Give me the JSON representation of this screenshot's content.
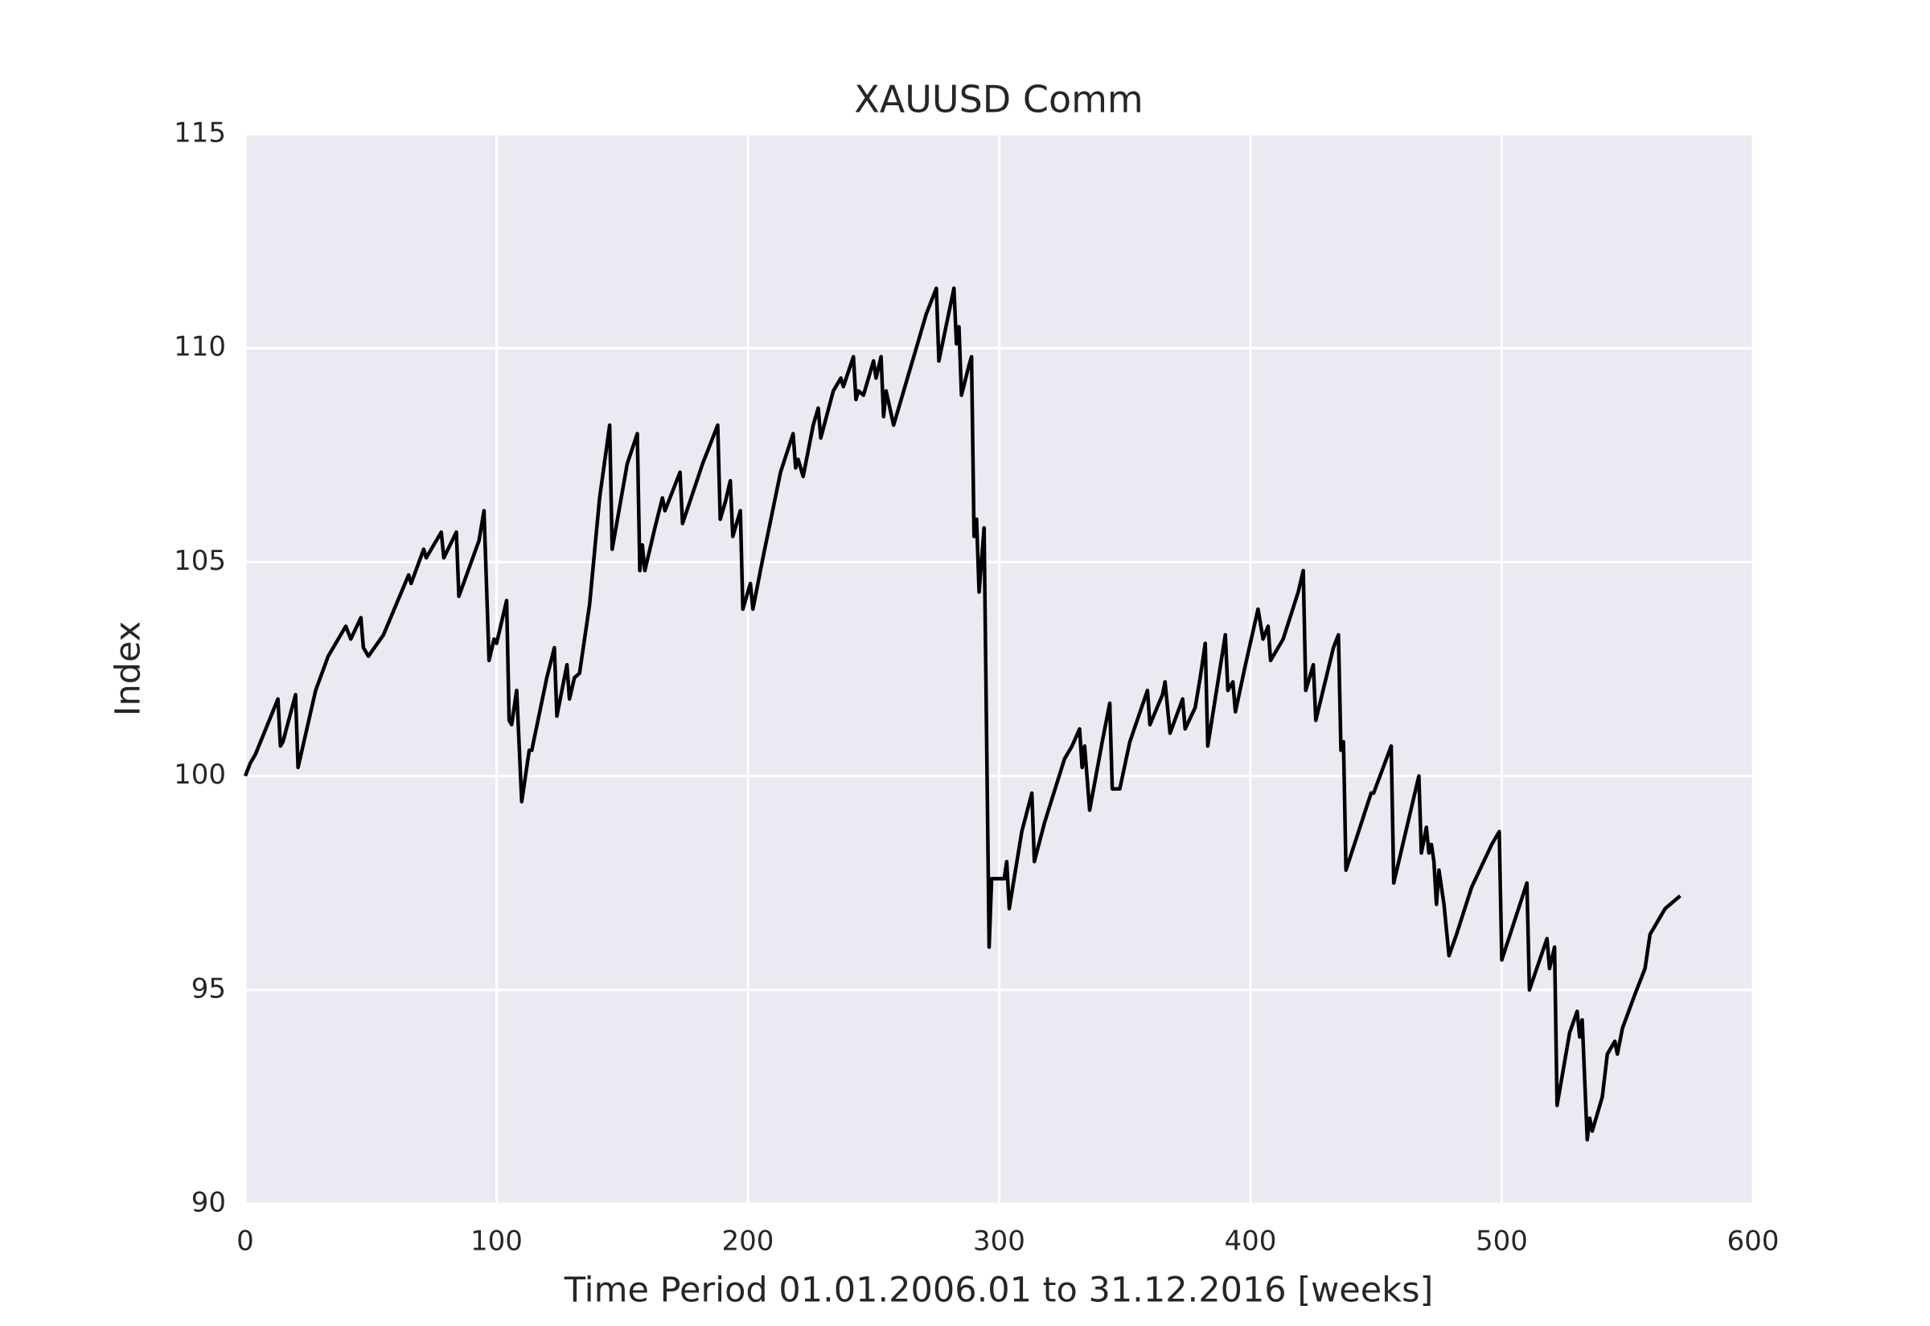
{
  "chart_data": {
    "type": "line",
    "title": "XAUUSD Comm",
    "xlabel": "Time Period 01.01.2006.01 to 31.12.2016 [weeks]",
    "ylabel": "Index",
    "xlim": [
      0,
      600
    ],
    "xticks": [
      0,
      100,
      200,
      300,
      400,
      500,
      600
    ],
    "ylim": [
      90,
      115
    ],
    "yticks": [
      90,
      95,
      100,
      105,
      110,
      115
    ],
    "grid": true,
    "color": "#000000",
    "x": [
      0,
      2,
      4,
      13,
      14,
      15,
      20,
      21,
      28,
      33,
      40,
      42,
      46,
      47,
      49,
      55,
      65,
      66,
      71,
      72,
      78,
      79,
      84,
      85,
      93,
      95,
      97,
      99,
      100,
      104,
      105,
      106,
      108,
      110,
      113,
      114,
      120,
      123,
      124,
      128,
      129,
      131,
      133,
      137,
      141,
      145,
      146,
      152,
      156,
      157,
      158,
      159,
      163,
      166,
      167,
      173,
      174,
      178,
      182,
      188,
      189,
      191,
      193,
      194,
      197,
      198,
      201,
      202,
      206,
      213,
      218,
      219,
      220,
      222,
      226,
      228,
      229,
      234,
      237,
      238,
      242,
      243,
      244,
      246,
      250,
      251,
      253,
      254,
      255,
      258,
      262,
      271,
      275,
      276,
      282,
      283,
      284,
      285,
      288,
      289,
      290,
      291,
      292,
      294,
      296,
      297,
      302,
      303,
      304,
      309,
      313,
      314,
      318,
      326,
      329,
      332,
      333,
      334,
      336,
      341,
      344,
      345,
      348,
      352,
      359,
      360,
      365,
      366,
      368,
      373,
      374,
      378,
      380,
      382,
      383,
      390,
      391,
      393,
      394,
      398,
      403,
      405,
      407,
      408,
      413,
      419,
      421,
      422,
      425,
      426,
      433,
      435,
      436,
      437,
      438,
      443,
      448,
      449,
      456,
      457,
      465,
      467,
      468,
      470,
      471,
      472,
      473,
      474,
      475,
      477,
      479,
      482,
      488,
      496,
      499,
      500,
      510,
      511,
      518,
      519,
      521,
      522,
      527,
      530,
      531,
      532,
      534,
      535,
      536,
      538,
      540,
      542,
      545,
      546,
      548,
      553,
      557,
      559,
      565,
      571
    ],
    "values": [
      100.0,
      100.3,
      100.5,
      101.8,
      100.7,
      100.8,
      101.9,
      100.2,
      102.0,
      102.8,
      103.5,
      103.2,
      103.7,
      103.0,
      102.8,
      103.3,
      104.7,
      104.5,
      105.3,
      105.1,
      105.7,
      105.1,
      105.7,
      104.2,
      105.5,
      106.2,
      102.7,
      103.2,
      103.1,
      104.1,
      101.3,
      101.2,
      102.0,
      99.4,
      100.6,
      100.6,
      102.3,
      103.0,
      101.4,
      102.6,
      101.8,
      102.3,
      102.4,
      104.0,
      106.5,
      108.2,
      105.3,
      107.3,
      108.0,
      104.8,
      105.4,
      104.8,
      105.8,
      106.5,
      106.2,
      107.1,
      105.9,
      106.6,
      107.3,
      108.2,
      106.0,
      106.4,
      106.9,
      105.6,
      106.2,
      103.9,
      104.5,
      103.9,
      105.1,
      107.1,
      108.0,
      107.2,
      107.4,
      107.0,
      108.2,
      108.6,
      107.9,
      109.0,
      109.3,
      109.1,
      109.8,
      108.8,
      109.0,
      108.9,
      109.7,
      109.3,
      109.8,
      108.4,
      109.0,
      108.2,
      109.0,
      110.8,
      111.4,
      109.7,
      111.4,
      110.1,
      110.5,
      108.9,
      109.6,
      109.8,
      105.6,
      106.0,
      104.3,
      105.8,
      96.0,
      97.6,
      97.6,
      98.0,
      96.9,
      98.7,
      99.6,
      98.0,
      98.9,
      100.4,
      100.7,
      101.1,
      100.2,
      100.7,
      99.2,
      100.8,
      101.7,
      99.7,
      99.7,
      100.8,
      102.0,
      101.2,
      101.9,
      102.2,
      101.0,
      101.8,
      101.1,
      101.6,
      102.3,
      103.1,
      100.7,
      103.3,
      102.0,
      102.2,
      101.5,
      102.6,
      103.9,
      103.2,
      103.5,
      102.7,
      103.2,
      104.3,
      104.8,
      102.0,
      102.6,
      101.3,
      103.0,
      103.3,
      100.6,
      100.8,
      97.8,
      98.7,
      99.6,
      99.6,
      100.7,
      97.5,
      99.5,
      100.0,
      98.2,
      98.8,
      98.2,
      98.4,
      98.0,
      97.0,
      97.8,
      97.0,
      95.8,
      96.3,
      97.4,
      98.4,
      98.7,
      95.7,
      97.5,
      95.0,
      96.2,
      95.5,
      96.0,
      92.3,
      94.0,
      94.5,
      93.9,
      94.3,
      91.5,
      92.0,
      91.7,
      92.1,
      92.5,
      93.5,
      93.8,
      93.5,
      94.1,
      94.9,
      95.5,
      96.3,
      96.9,
      97.2
    ]
  }
}
